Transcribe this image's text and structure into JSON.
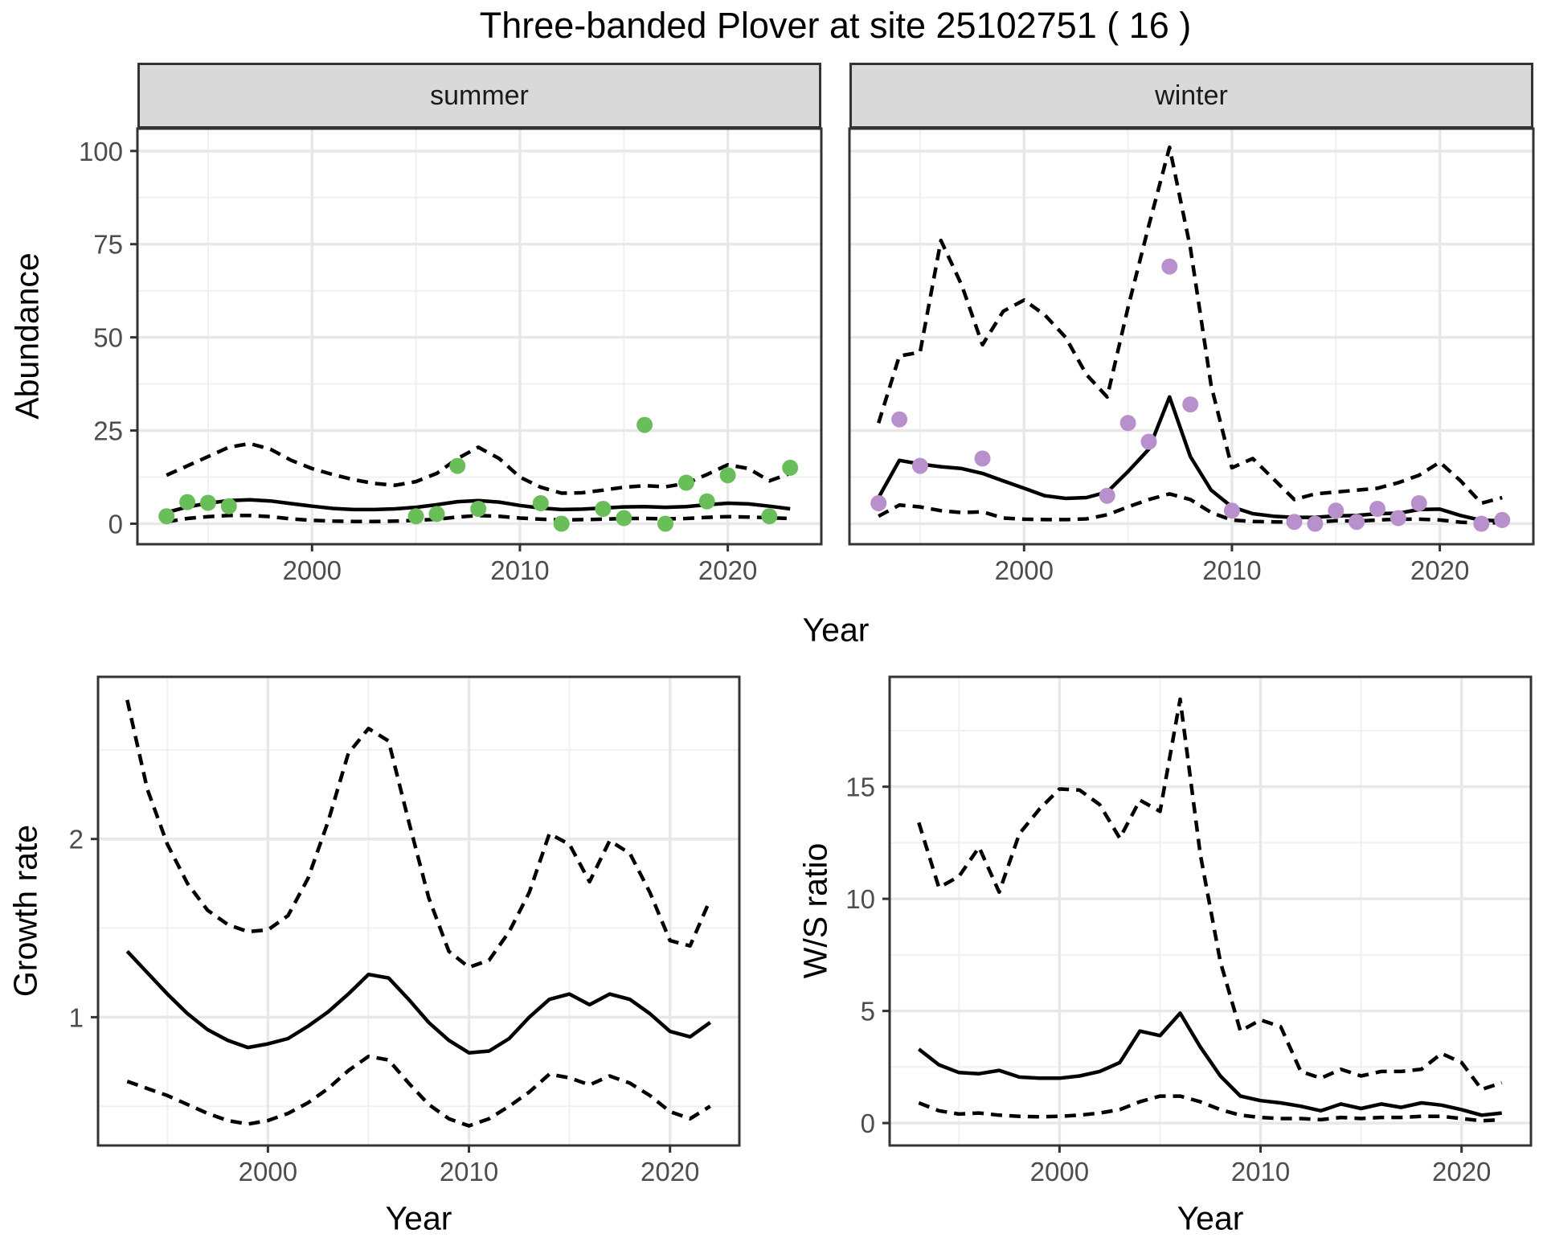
{
  "title": "Three-banded Plover at site 25102751 ( 16 )",
  "facets": [
    "summer",
    "winter"
  ],
  "axes": {
    "x_title": "Year",
    "abundance_title": "Abundance",
    "growth_title": "Growth rate",
    "ws_title": "W/S ratio"
  },
  "colors": {
    "summer_point": "#6abe59",
    "winter_point": "#b890cb",
    "line": "#000000",
    "grid_major": "#e8e8e8",
    "grid_minor": "#f0f0f0",
    "panel_border": "#333333",
    "tick_label": "#4d4d4d",
    "strip_fill": "#d9d9d9"
  },
  "chart_data": [
    {
      "type": "line",
      "panel": "abundance_summer",
      "title": "summer",
      "xlabel": "Year",
      "ylabel": "Abundance",
      "xlim": [
        1991.6,
        2024.5
      ],
      "ylim": [
        -5.5,
        106
      ],
      "x_ticks": [
        2000,
        2010,
        2020
      ],
      "x_minor": [
        1995,
        2005,
        2015
      ],
      "y_ticks": [
        0,
        25,
        50,
        75,
        100
      ],
      "y_minor": [
        12.5,
        37.5,
        62.5,
        87.5
      ],
      "show_y_labels": true,
      "x": [
        1993,
        1994,
        1995,
        1996,
        1997,
        1998,
        1999,
        2000,
        2001,
        2002,
        2003,
        2004,
        2005,
        2006,
        2007,
        2008,
        2009,
        2010,
        2011,
        2012,
        2013,
        2014,
        2015,
        2016,
        2017,
        2018,
        2019,
        2020,
        2021,
        2022,
        2023
      ],
      "series": [
        {
          "name": "estimate",
          "style": "solid",
          "values": [
            3.0,
            4.5,
            5.5,
            6.2,
            6.4,
            6.1,
            5.4,
            4.7,
            4.1,
            3.8,
            3.8,
            4.0,
            4.4,
            5.1,
            5.9,
            6.2,
            5.8,
            4.9,
            4.2,
            3.8,
            3.9,
            4.2,
            4.5,
            4.6,
            4.4,
            4.6,
            5.1,
            5.5,
            5.3,
            4.7,
            4.0
          ]
        },
        {
          "name": "upper_ci",
          "style": "dashed",
          "values": [
            13,
            15.5,
            18,
            20.5,
            21.5,
            20,
            17,
            14.8,
            13.2,
            11.8,
            10.8,
            10.3,
            11.3,
            13.5,
            17.5,
            20.5,
            17.5,
            12.5,
            9.8,
            8.2,
            8.3,
            9.0,
            9.8,
            10.2,
            9.9,
            10.8,
            13.2,
            15.8,
            14.8,
            11.5,
            13.5
          ]
        },
        {
          "name": "lower_ci",
          "style": "dashed",
          "values": [
            0.5,
            1.4,
            1.9,
            2.2,
            2.2,
            1.9,
            1.3,
            0.9,
            0.7,
            0.6,
            0.6,
            0.7,
            0.9,
            1.2,
            1.8,
            2.2,
            2.0,
            1.5,
            1.2,
            1.0,
            1.1,
            1.2,
            1.4,
            1.4,
            1.3,
            1.4,
            1.7,
            1.9,
            1.8,
            1.6,
            1.4
          ]
        }
      ],
      "points": {
        "name": "observed_counts",
        "color": "#6abe59",
        "data": [
          [
            1993,
            2
          ],
          [
            1994,
            5.8
          ],
          [
            1995,
            5.6
          ],
          [
            1996,
            4.7
          ],
          [
            2005,
            2
          ],
          [
            2006,
            2.6
          ],
          [
            2007,
            15.5
          ],
          [
            2008,
            4
          ],
          [
            2011,
            5.5
          ],
          [
            2012,
            0
          ],
          [
            2014,
            4
          ],
          [
            2015,
            1.5
          ],
          [
            2016,
            26.5
          ],
          [
            2017,
            0
          ],
          [
            2018,
            11
          ],
          [
            2019,
            6
          ],
          [
            2020,
            13
          ],
          [
            2022,
            2
          ],
          [
            2023,
            15
          ]
        ]
      }
    },
    {
      "type": "line",
      "panel": "abundance_winter",
      "title": "winter",
      "xlabel": "Year",
      "ylabel": "Abundance",
      "xlim": [
        1991.6,
        2024.5
      ],
      "ylim": [
        -5.5,
        106
      ],
      "x_ticks": [
        2000,
        2010,
        2020
      ],
      "x_minor": [
        1995,
        2005,
        2015
      ],
      "y_ticks": [
        0,
        25,
        50,
        75,
        100
      ],
      "y_minor": [
        12.5,
        37.5,
        62.5,
        87.5
      ],
      "show_y_labels": false,
      "x": [
        1993,
        1994,
        1995,
        1996,
        1997,
        1998,
        1999,
        2000,
        2001,
        2002,
        2003,
        2004,
        2005,
        2006,
        2007,
        2008,
        2009,
        2010,
        2011,
        2012,
        2013,
        2014,
        2015,
        2016,
        2017,
        2018,
        2019,
        2020,
        2021,
        2022,
        2023
      ],
      "series": [
        {
          "name": "estimate",
          "style": "solid",
          "values": [
            7,
            17,
            16,
            15.3,
            14.8,
            13.5,
            11.5,
            9.5,
            7.5,
            6.8,
            7,
            8.5,
            14,
            20,
            34,
            18,
            9,
            4.5,
            2.7,
            2.0,
            1.7,
            1.7,
            2.1,
            2.2,
            2.7,
            2.8,
            3.8,
            3.9,
            2.2,
            0.9,
            0.8
          ]
        },
        {
          "name": "upper_ci",
          "style": "dashed",
          "values": [
            27,
            45,
            46,
            76,
            64,
            48,
            57,
            60,
            56,
            50,
            40,
            34,
            58,
            80,
            101,
            74,
            37,
            15,
            17.5,
            12,
            6.5,
            8,
            8.5,
            9,
            9.5,
            11,
            13,
            16.5,
            11.5,
            5.5,
            7
          ]
        },
        {
          "name": "lower_ci",
          "style": "dashed",
          "values": [
            2,
            5,
            4.5,
            3.5,
            3,
            3.2,
            1.5,
            1.2,
            1.1,
            1.1,
            1.3,
            2.4,
            4.5,
            6.5,
            8,
            6.5,
            3,
            1,
            0.6,
            0.5,
            0.4,
            0.4,
            0.8,
            0.7,
            1.0,
            1.2,
            1.2,
            1.0,
            0.4,
            0.15,
            0.3
          ]
        }
      ],
      "points": {
        "name": "observed_counts",
        "color": "#b890cb",
        "data": [
          [
            1993,
            5.5
          ],
          [
            1994,
            28
          ],
          [
            1995,
            15.5
          ],
          [
            1998,
            17.5
          ],
          [
            2004,
            7.5
          ],
          [
            2005,
            27
          ],
          [
            2006,
            22
          ],
          [
            2007,
            69
          ],
          [
            2008,
            32
          ],
          [
            2010,
            3.5
          ],
          [
            2013,
            0.5
          ],
          [
            2014,
            0
          ],
          [
            2015,
            3.5
          ],
          [
            2016,
            0.5
          ],
          [
            2017,
            4
          ],
          [
            2018,
            1.5
          ],
          [
            2019,
            5.5
          ],
          [
            2022,
            0
          ],
          [
            2023,
            1
          ]
        ]
      }
    },
    {
      "type": "line",
      "panel": "growth_rate",
      "title": "",
      "xlabel": "Year",
      "ylabel": "Growth rate",
      "xlim": [
        1991.55,
        2023.45
      ],
      "ylim": [
        0.28,
        2.91
      ],
      "x_ticks": [
        2000,
        2010,
        2020
      ],
      "x_minor": [
        1995,
        2005,
        2015
      ],
      "y_ticks": [
        1,
        2
      ],
      "y_minor": [
        0.5,
        1.5,
        2.5
      ],
      "show_y_labels": true,
      "x": [
        1993,
        1994,
        1995,
        1996,
        1997,
        1998,
        1999,
        2000,
        2001,
        2002,
        2003,
        2004,
        2005,
        2006,
        2007,
        2008,
        2009,
        2010,
        2011,
        2012,
        2013,
        2014,
        2015,
        2016,
        2017,
        2018,
        2019,
        2020,
        2021,
        2022
      ],
      "series": [
        {
          "name": "estimate",
          "style": "solid",
          "values": [
            1.37,
            1.25,
            1.13,
            1.02,
            0.93,
            0.87,
            0.83,
            0.85,
            0.88,
            0.95,
            1.03,
            1.13,
            1.24,
            1.22,
            1.1,
            0.97,
            0.87,
            0.8,
            0.81,
            0.88,
            1.0,
            1.1,
            1.13,
            1.07,
            1.13,
            1.1,
            1.02,
            0.92,
            0.89,
            0.97
          ]
        },
        {
          "name": "upper_ci",
          "style": "dashed",
          "values": [
            2.78,
            2.28,
            1.97,
            1.75,
            1.6,
            1.52,
            1.48,
            1.49,
            1.57,
            1.78,
            2.1,
            2.48,
            2.62,
            2.55,
            2.1,
            1.67,
            1.37,
            1.28,
            1.32,
            1.48,
            1.7,
            2.03,
            1.97,
            1.76,
            1.99,
            1.92,
            1.7,
            1.43,
            1.4,
            1.66
          ]
        },
        {
          "name": "lower_ci",
          "style": "dashed",
          "values": [
            0.64,
            0.6,
            0.56,
            0.51,
            0.46,
            0.42,
            0.4,
            0.42,
            0.46,
            0.52,
            0.6,
            0.7,
            0.78,
            0.76,
            0.63,
            0.51,
            0.43,
            0.39,
            0.43,
            0.5,
            0.58,
            0.68,
            0.66,
            0.62,
            0.67,
            0.63,
            0.56,
            0.47,
            0.43,
            0.5
          ]
        }
      ],
      "points": null
    },
    {
      "type": "line",
      "panel": "ws_ratio",
      "title": "",
      "xlabel": "Year",
      "ylabel": "W/S ratio",
      "xlim": [
        1991.55,
        2023.45
      ],
      "ylim": [
        -1.0,
        19.9
      ],
      "x_ticks": [
        2000,
        2010,
        2020
      ],
      "x_minor": [
        1995,
        2005,
        2015
      ],
      "y_ticks": [
        0,
        5,
        10,
        15
      ],
      "y_minor": [
        2.5,
        7.5,
        12.5,
        17.5
      ],
      "show_y_labels": true,
      "x": [
        1993,
        1994,
        1995,
        1996,
        1997,
        1998,
        1999,
        2000,
        2001,
        2002,
        2003,
        2004,
        2005,
        2006,
        2007,
        2008,
        2009,
        2010,
        2011,
        2012,
        2013,
        2014,
        2015,
        2016,
        2017,
        2018,
        2019,
        2020,
        2021,
        2022
      ],
      "series": [
        {
          "name": "estimate",
          "style": "solid",
          "values": [
            3.3,
            2.6,
            2.25,
            2.2,
            2.35,
            2.05,
            2.0,
            2.0,
            2.1,
            2.3,
            2.7,
            4.1,
            3.9,
            4.9,
            3.4,
            2.1,
            1.2,
            1.0,
            0.9,
            0.75,
            0.55,
            0.85,
            0.65,
            0.85,
            0.7,
            0.9,
            0.8,
            0.6,
            0.35,
            0.45
          ]
        },
        {
          "name": "upper_ci",
          "style": "dashed",
          "values": [
            13.4,
            10.5,
            11.0,
            12.3,
            10.3,
            12.9,
            14.0,
            14.9,
            14.85,
            14.2,
            12.7,
            14.4,
            13.9,
            18.9,
            12.0,
            7.2,
            4.1,
            4.6,
            4.3,
            2.3,
            2.0,
            2.4,
            2.1,
            2.3,
            2.3,
            2.4,
            3.1,
            2.7,
            1.5,
            1.8
          ]
        },
        {
          "name": "lower_ci",
          "style": "dashed",
          "values": [
            0.9,
            0.55,
            0.4,
            0.45,
            0.35,
            0.3,
            0.28,
            0.3,
            0.35,
            0.45,
            0.6,
            0.95,
            1.2,
            1.2,
            0.95,
            0.6,
            0.35,
            0.25,
            0.2,
            0.2,
            0.15,
            0.25,
            0.2,
            0.25,
            0.25,
            0.3,
            0.3,
            0.2,
            0.1,
            0.15
          ]
        }
      ],
      "points": null
    }
  ]
}
